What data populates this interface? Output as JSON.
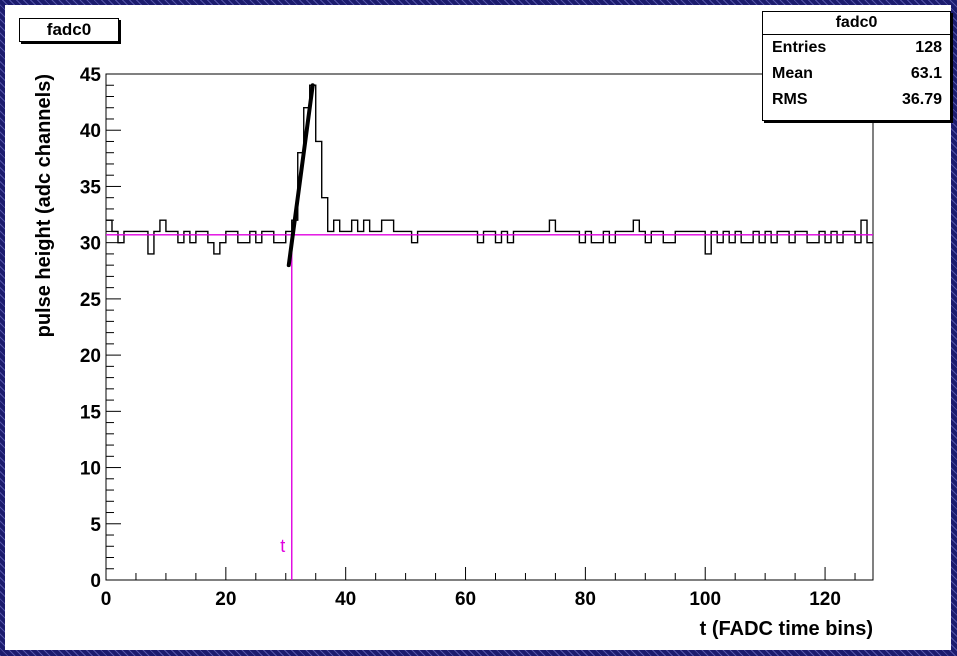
{
  "hist_title": "fadc0",
  "stats": {
    "title": "fadc0",
    "rows": [
      {
        "label": "Entries",
        "value": "128"
      },
      {
        "label": "Mean",
        "value": "63.1"
      },
      {
        "label": "RMS",
        "value": "36.79"
      }
    ]
  },
  "colors": {
    "histogram": "#000000",
    "baseline_line": "#e000e0",
    "marker_line": "#e000e0",
    "fit_line": "#000000",
    "background": "#1c1c6e"
  },
  "chart_data": {
    "type": "histogram",
    "title": "fadc0",
    "xlabel": "t (FADC time bins)",
    "ylabel": "pulse height (adc channels)",
    "xlim": [
      0,
      128
    ],
    "ylim": [
      0,
      45
    ],
    "xticks": [
      0,
      20,
      40,
      60,
      80,
      100,
      120
    ],
    "yticks": [
      0,
      5,
      10,
      15,
      20,
      25,
      30,
      35,
      40,
      45
    ],
    "grid": false,
    "series": [
      {
        "values": [
          32,
          31,
          30,
          31,
          31,
          31,
          31,
          29,
          31,
          32,
          31,
          31,
          30,
          31,
          30,
          31,
          31,
          30,
          29,
          30,
          31,
          31,
          30,
          30,
          31,
          30,
          31,
          31,
          30,
          30,
          31,
          32,
          38,
          42,
          44,
          39,
          34,
          31,
          32,
          31,
          31,
          32,
          31,
          32,
          31,
          31,
          32,
          32,
          31,
          31,
          31,
          30,
          31,
          31,
          31,
          31,
          31,
          31,
          31,
          31,
          31,
          31,
          30,
          31,
          31,
          30,
          31,
          30,
          31,
          31,
          31,
          31,
          31,
          31,
          32,
          31,
          31,
          31,
          31,
          30,
          31,
          30,
          30,
          31,
          30,
          31,
          31,
          31,
          32,
          31,
          30,
          31,
          31,
          30,
          30,
          31,
          31,
          31,
          31,
          31,
          29,
          31,
          30,
          31,
          30,
          31,
          30,
          30,
          31,
          30,
          31,
          30,
          31,
          31,
          30,
          31,
          31,
          30,
          30,
          31,
          30,
          31,
          30,
          31,
          31,
          30,
          32,
          30
        ]
      }
    ],
    "baseline": 30.7,
    "marker": {
      "x": 31,
      "label": "t"
    },
    "fit_line": {
      "x": [
        30.5,
        34.5
      ],
      "y": [
        28,
        44
      ]
    }
  }
}
